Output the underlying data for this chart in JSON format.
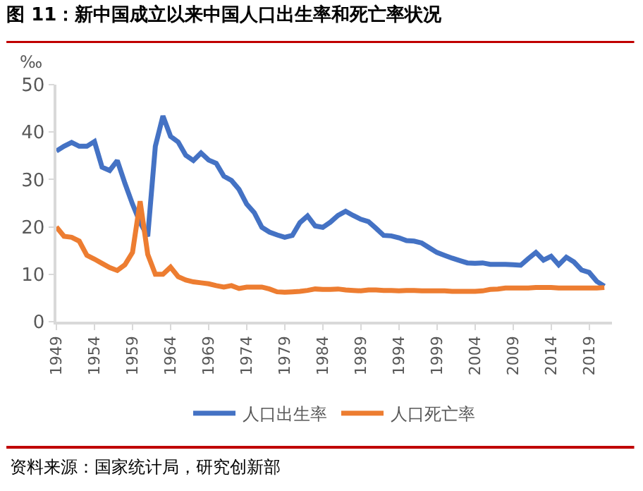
{
  "chart_data": {
    "type": "line",
    "title": "图 11：新中国成立以来中国人口出生率和死亡率状况",
    "ylabel": "‰",
    "annotations": [
      "资料来源：国家统计局，研究创新部"
    ],
    "x": [
      1949,
      1950,
      1951,
      1952,
      1953,
      1954,
      1955,
      1956,
      1957,
      1958,
      1959,
      1960,
      1961,
      1962,
      1963,
      1964,
      1965,
      1966,
      1967,
      1968,
      1969,
      1970,
      1971,
      1972,
      1973,
      1974,
      1975,
      1976,
      1977,
      1978,
      1979,
      1980,
      1981,
      1982,
      1983,
      1984,
      1985,
      1986,
      1987,
      1988,
      1989,
      1990,
      1991,
      1992,
      1993,
      1994,
      1995,
      1996,
      1997,
      1998,
      1999,
      2000,
      2001,
      2002,
      2003,
      2004,
      2005,
      2006,
      2007,
      2008,
      2009,
      2010,
      2011,
      2012,
      2013,
      2014,
      2015,
      2016,
      2017,
      2018,
      2019,
      2020,
      2021
    ],
    "series": [
      {
        "name": "人口出生率",
        "color": "#4472c4",
        "values": [
          36,
          37,
          37.8,
          37,
          37,
          38,
          32.6,
          31.9,
          34,
          29.2,
          24.8,
          20.9,
          18,
          37,
          43.4,
          39.1,
          37.9,
          35.1,
          34,
          35.6,
          34.1,
          33.4,
          30.7,
          29.8,
          27.9,
          24.8,
          23,
          19.9,
          18.9,
          18.3,
          17.8,
          18.2,
          20.9,
          22.3,
          20.2,
          19.9,
          21,
          22.4,
          23.3,
          22.4,
          21.6,
          21.1,
          19.7,
          18.2,
          18.1,
          17.7,
          17.1,
          17,
          16.6,
          15.6,
          14.6,
          14,
          13.4,
          12.9,
          12.4,
          12.3,
          12.4,
          12.1,
          12.1,
          12.1,
          12,
          11.9,
          13.3,
          14.6,
          13,
          13.8,
          12,
          13.6,
          12.6,
          10.9,
          10.4,
          8.5,
          7.5
        ]
      },
      {
        "name": "人口死亡率",
        "color": "#ed7d31",
        "values": [
          20,
          18,
          17.8,
          17,
          14,
          13.2,
          12.3,
          11.4,
          10.8,
          12,
          14.6,
          25.4,
          14.2,
          10,
          10,
          11.5,
          9.5,
          8.8,
          8.4,
          8.2,
          8,
          7.6,
          7.3,
          7.6,
          7,
          7.3,
          7.3,
          7.3,
          6.9,
          6.3,
          6.2,
          6.3,
          6.4,
          6.6,
          6.9,
          6.8,
          6.8,
          6.9,
          6.7,
          6.6,
          6.5,
          6.7,
          6.7,
          6.6,
          6.6,
          6.5,
          6.6,
          6.6,
          6.5,
          6.5,
          6.5,
          6.5,
          6.4,
          6.4,
          6.4,
          6.4,
          6.5,
          6.8,
          6.9,
          7.1,
          7.1,
          7.1,
          7.1,
          7.2,
          7.2,
          7.2,
          7.1,
          7.1,
          7.1,
          7.1,
          7.1,
          7.1,
          7.2
        ]
      }
    ],
    "xlim": [
      1949,
      2022
    ],
    "xticks": [
      1949,
      1954,
      1959,
      1964,
      1969,
      1974,
      1979,
      1984,
      1989,
      1994,
      1999,
      2004,
      2009,
      2014,
      2019
    ],
    "ylim": [
      0,
      50
    ],
    "yticks": [
      0,
      10,
      20,
      30,
      40,
      50
    ],
    "grid": false,
    "legend": "bottom",
    "marker": "none",
    "line_style": "solid"
  }
}
